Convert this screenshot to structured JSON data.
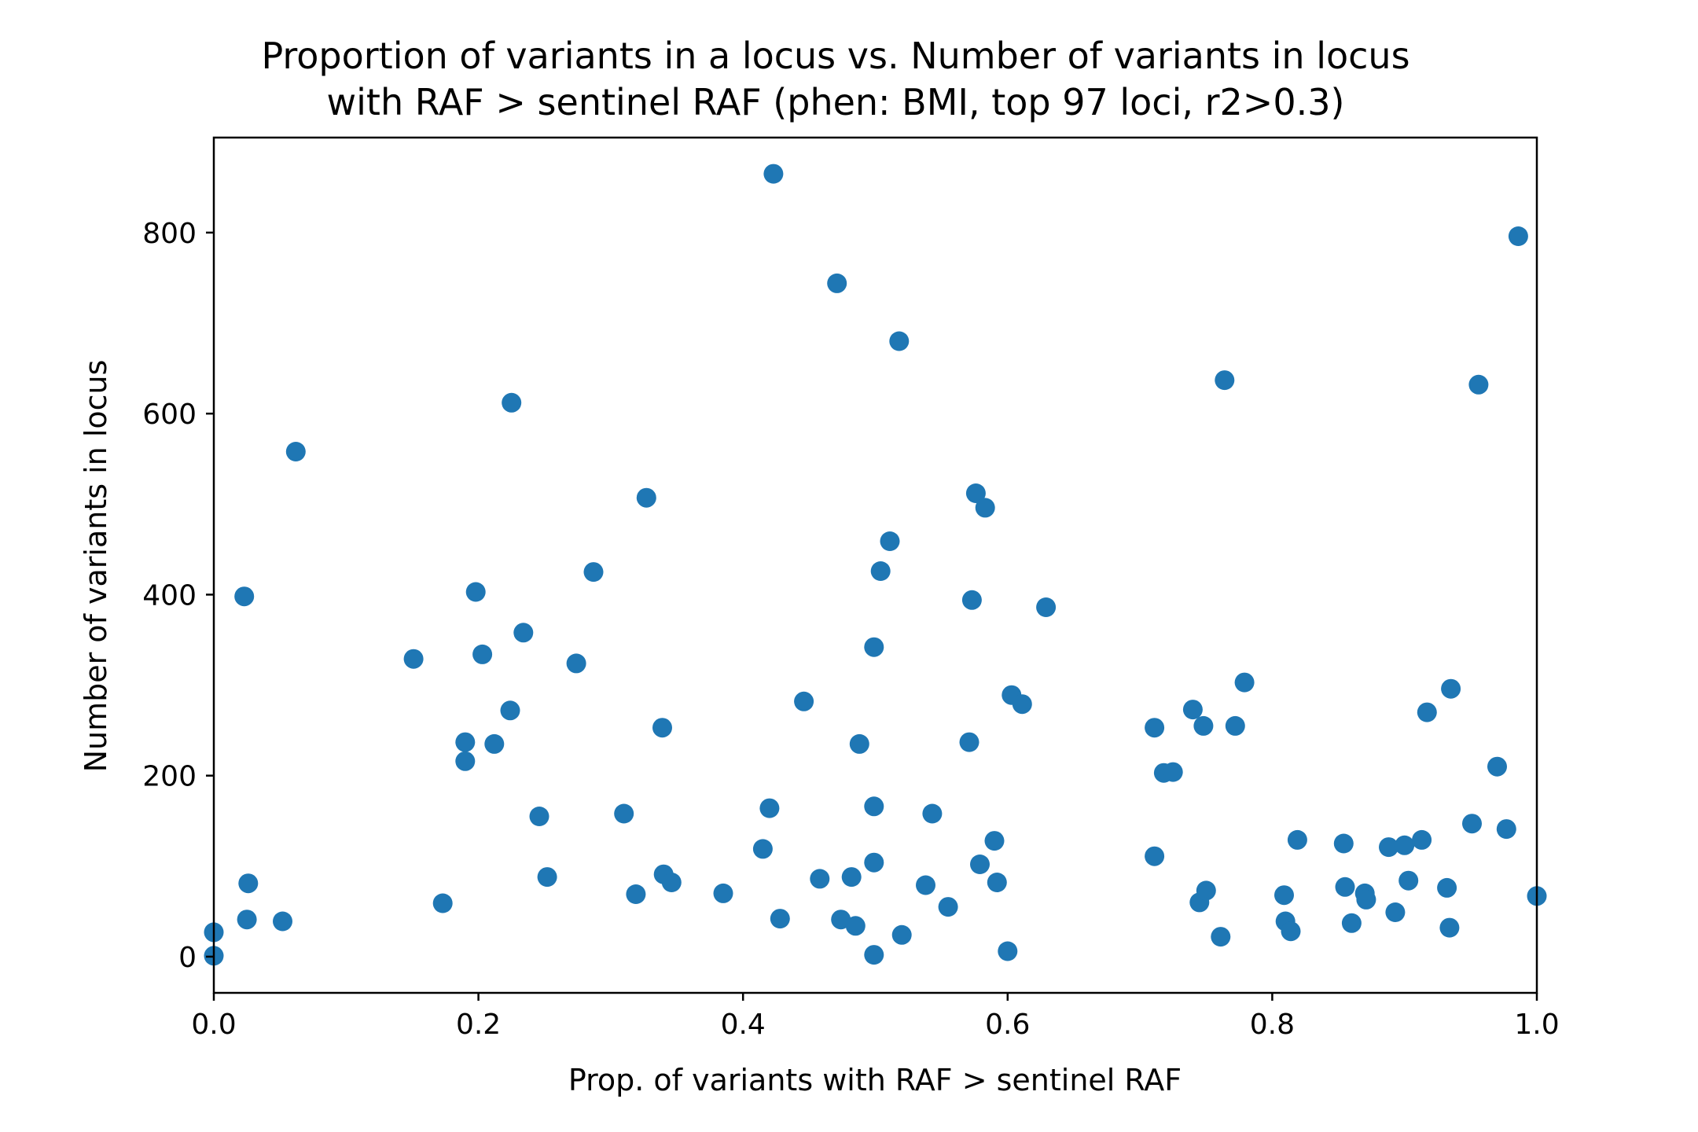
{
  "chart_data": {
    "type": "scatter",
    "title_lines": [
      "Proportion of variants in a locus vs. Number of variants in locus",
      "with RAF > sentinel RAF (phen: BMI, top 97 loci, r2>0.3)"
    ],
    "xlabel": "Prop. of variants with RAF > sentinel RAF",
    "ylabel": "Number of variants in locus",
    "xlim": [
      0.0,
      1.0
    ],
    "ylim": [
      -40,
      905
    ],
    "xticks": [
      0.0,
      0.2,
      0.4,
      0.6,
      0.8,
      1.0
    ],
    "xtick_labels": [
      "0.0",
      "0.2",
      "0.4",
      "0.6",
      "0.8",
      "1.0"
    ],
    "yticks": [
      0,
      200,
      400,
      600,
      800
    ],
    "ytick_labels": [
      "0",
      "200",
      "400",
      "600",
      "800"
    ],
    "grid": false,
    "marker_color": "#1f77b4",
    "series": [
      {
        "points": [
          [
            0.0,
            27
          ],
          [
            0.0,
            1
          ],
          [
            0.023,
            398
          ],
          [
            0.025,
            41
          ],
          [
            0.026,
            81
          ],
          [
            0.052,
            39
          ],
          [
            0.062,
            558
          ],
          [
            0.151,
            329
          ],
          [
            0.173,
            59
          ],
          [
            0.19,
            237
          ],
          [
            0.19,
            216
          ],
          [
            0.198,
            403
          ],
          [
            0.203,
            334
          ],
          [
            0.212,
            235
          ],
          [
            0.224,
            272
          ],
          [
            0.225,
            612
          ],
          [
            0.234,
            358
          ],
          [
            0.246,
            155
          ],
          [
            0.252,
            88
          ],
          [
            0.274,
            324
          ],
          [
            0.287,
            425
          ],
          [
            0.31,
            158
          ],
          [
            0.319,
            69
          ],
          [
            0.327,
            507
          ],
          [
            0.339,
            253
          ],
          [
            0.34,
            91
          ],
          [
            0.346,
            82
          ],
          [
            0.385,
            70
          ],
          [
            0.415,
            119
          ],
          [
            0.42,
            164
          ],
          [
            0.423,
            865
          ],
          [
            0.428,
            42
          ],
          [
            0.446,
            282
          ],
          [
            0.458,
            86
          ],
          [
            0.471,
            744
          ],
          [
            0.474,
            41
          ],
          [
            0.482,
            88
          ],
          [
            0.485,
            34
          ],
          [
            0.488,
            235
          ],
          [
            0.499,
            342
          ],
          [
            0.499,
            166
          ],
          [
            0.499,
            104
          ],
          [
            0.499,
            2
          ],
          [
            0.504,
            426
          ],
          [
            0.511,
            459
          ],
          [
            0.518,
            680
          ],
          [
            0.52,
            24
          ],
          [
            0.538,
            79
          ],
          [
            0.543,
            158
          ],
          [
            0.555,
            55
          ],
          [
            0.571,
            237
          ],
          [
            0.573,
            394
          ],
          [
            0.576,
            512
          ],
          [
            0.579,
            102
          ],
          [
            0.583,
            496
          ],
          [
            0.59,
            128
          ],
          [
            0.592,
            82
          ],
          [
            0.6,
            6
          ],
          [
            0.603,
            289
          ],
          [
            0.611,
            279
          ],
          [
            0.629,
            386
          ],
          [
            0.711,
            253
          ],
          [
            0.711,
            111
          ],
          [
            0.718,
            203
          ],
          [
            0.725,
            204
          ],
          [
            0.74,
            273
          ],
          [
            0.745,
            60
          ],
          [
            0.748,
            255
          ],
          [
            0.75,
            73
          ],
          [
            0.761,
            22
          ],
          [
            0.764,
            637
          ],
          [
            0.772,
            255
          ],
          [
            0.779,
            303
          ],
          [
            0.809,
            68
          ],
          [
            0.81,
            39
          ],
          [
            0.814,
            28
          ],
          [
            0.819,
            129
          ],
          [
            0.854,
            125
          ],
          [
            0.855,
            77
          ],
          [
            0.86,
            37
          ],
          [
            0.87,
            70
          ],
          [
            0.871,
            63
          ],
          [
            0.888,
            121
          ],
          [
            0.893,
            49
          ],
          [
            0.9,
            123
          ],
          [
            0.903,
            84
          ],
          [
            0.913,
            129
          ],
          [
            0.917,
            270
          ],
          [
            0.932,
            76
          ],
          [
            0.934,
            32
          ],
          [
            0.935,
            296
          ],
          [
            0.951,
            147
          ],
          [
            0.956,
            632
          ],
          [
            0.97,
            210
          ],
          [
            0.977,
            141
          ],
          [
            0.986,
            796
          ],
          [
            1.0,
            67
          ]
        ]
      }
    ]
  }
}
